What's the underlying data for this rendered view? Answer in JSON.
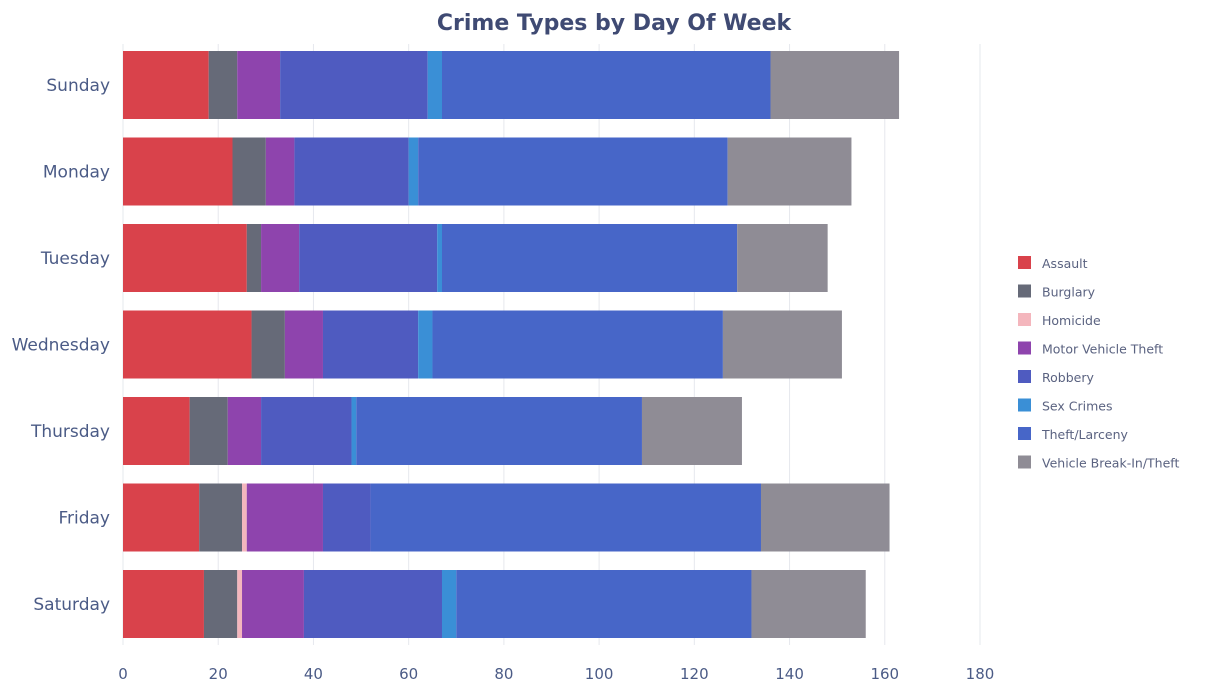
{
  "chart_data": {
    "type": "bar",
    "orientation": "horizontal",
    "stacked": true,
    "title": "Crime Types by Day Of Week",
    "xlabel": "",
    "ylabel": "",
    "xlim": [
      0,
      180
    ],
    "x_ticks": [
      0,
      20,
      40,
      60,
      80,
      100,
      120,
      140,
      160,
      180
    ],
    "grid": true,
    "legend_position": "right",
    "categories": [
      "Sunday",
      "Monday",
      "Tuesday",
      "Wednesday",
      "Thursday",
      "Friday",
      "Saturday"
    ],
    "series": [
      {
        "name": "Assault",
        "color": "#d9424b",
        "values": [
          18,
          23,
          26,
          27,
          14,
          16,
          17
        ]
      },
      {
        "name": "Burglary",
        "color": "#666a78",
        "values": [
          6,
          7,
          3,
          7,
          8,
          9,
          7
        ]
      },
      {
        "name": "Homicide",
        "color": "#f4b6bd",
        "values": [
          0,
          0,
          0,
          0,
          0,
          1,
          1
        ]
      },
      {
        "name": "Motor Vehicle Theft",
        "color": "#8e44ad",
        "values": [
          9,
          6,
          8,
          8,
          7,
          16,
          13
        ]
      },
      {
        "name": "Robbery",
        "color": "#4f5bc0",
        "values": [
          31,
          24,
          29,
          20,
          19,
          10,
          29
        ]
      },
      {
        "name": "Sex Crimes",
        "color": "#3a8fd6",
        "values": [
          3,
          2,
          1,
          3,
          1,
          0,
          3
        ]
      },
      {
        "name": "Theft/Larceny",
        "color": "#4766c8",
        "values": [
          69,
          65,
          62,
          61,
          60,
          82,
          62
        ]
      },
      {
        "name": "Vehicle Break-In/Theft",
        "color": "#8f8c95",
        "values": [
          27,
          26,
          19,
          25,
          21,
          27,
          24
        ]
      }
    ]
  }
}
